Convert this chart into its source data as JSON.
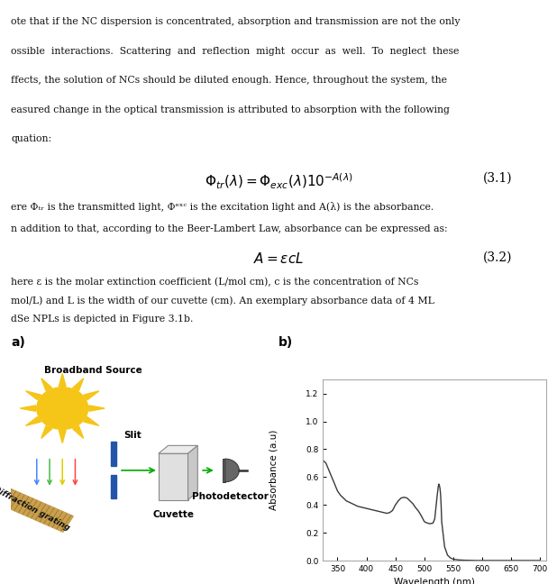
{
  "panel_a_label": "a)",
  "panel_b_label": "b)",
  "broadband_source_label": "Broadband Source",
  "slit_label": "Slit",
  "diffraction_grating_label": "Diffraction grating",
  "cuvette_label": "Cuvette",
  "photodetector_label": "Photodetector",
  "xlabel": "Wavelength (nm)",
  "ylabel": "Absorbance (a.u)",
  "xlim": [
    325,
    710
  ],
  "ylim": [
    0.0,
    1.3
  ],
  "yticks": [
    0.0,
    0.2,
    0.4,
    0.6,
    0.8,
    1.0,
    1.2
  ],
  "xticks": [
    350,
    400,
    450,
    500,
    550,
    600,
    650,
    700
  ],
  "line_color": "#3a3a3a",
  "sun_color": "#F5C518",
  "slit_color": "#2255AA",
  "grating_color": "#C8A050",
  "cuvette_color": "#E0E0E0",
  "cuvette_edge_color": "#888888",
  "photodetector_color": "#666666",
  "arrow_color": "#00AA00",
  "background_color": "#ffffff",
  "wavelength_data": [
    325,
    330,
    335,
    340,
    345,
    350,
    355,
    360,
    365,
    370,
    375,
    380,
    385,
    390,
    395,
    400,
    405,
    410,
    415,
    420,
    425,
    430,
    435,
    440,
    445,
    450,
    455,
    460,
    465,
    470,
    475,
    480,
    485,
    490,
    495,
    500,
    505,
    510,
    515,
    518,
    520,
    522,
    524,
    525,
    526,
    527,
    528,
    529,
    530,
    535,
    540,
    545,
    550,
    560,
    570,
    580,
    590,
    600,
    620,
    640,
    660,
    680,
    700
  ],
  "absorbance_data": [
    0.72,
    0.7,
    0.65,
    0.6,
    0.55,
    0.5,
    0.47,
    0.45,
    0.43,
    0.42,
    0.41,
    0.4,
    0.39,
    0.385,
    0.38,
    0.375,
    0.37,
    0.365,
    0.36,
    0.355,
    0.35,
    0.345,
    0.34,
    0.345,
    0.36,
    0.4,
    0.43,
    0.45,
    0.455,
    0.45,
    0.43,
    0.41,
    0.38,
    0.355,
    0.32,
    0.28,
    0.27,
    0.265,
    0.27,
    0.3,
    0.38,
    0.46,
    0.53,
    0.55,
    0.54,
    0.52,
    0.48,
    0.4,
    0.28,
    0.1,
    0.04,
    0.02,
    0.01,
    0.005,
    0.003,
    0.002,
    0.001,
    0.001,
    0.001,
    0.001,
    0.001,
    0.001,
    0.001
  ],
  "page_text": [
    "ote that if the NC dispersion is concentrated, absorption and transmission are not the only",
    "ossible  interactions.  Scattering  and  reflection  might  occur  as  well.  To  neglect  these",
    "ffects, the solution of NCs should be diluted enough. Hence, throughout the system, the",
    "easured change in the optical transmission is attributed to absorption with the following",
    "quation:"
  ]
}
